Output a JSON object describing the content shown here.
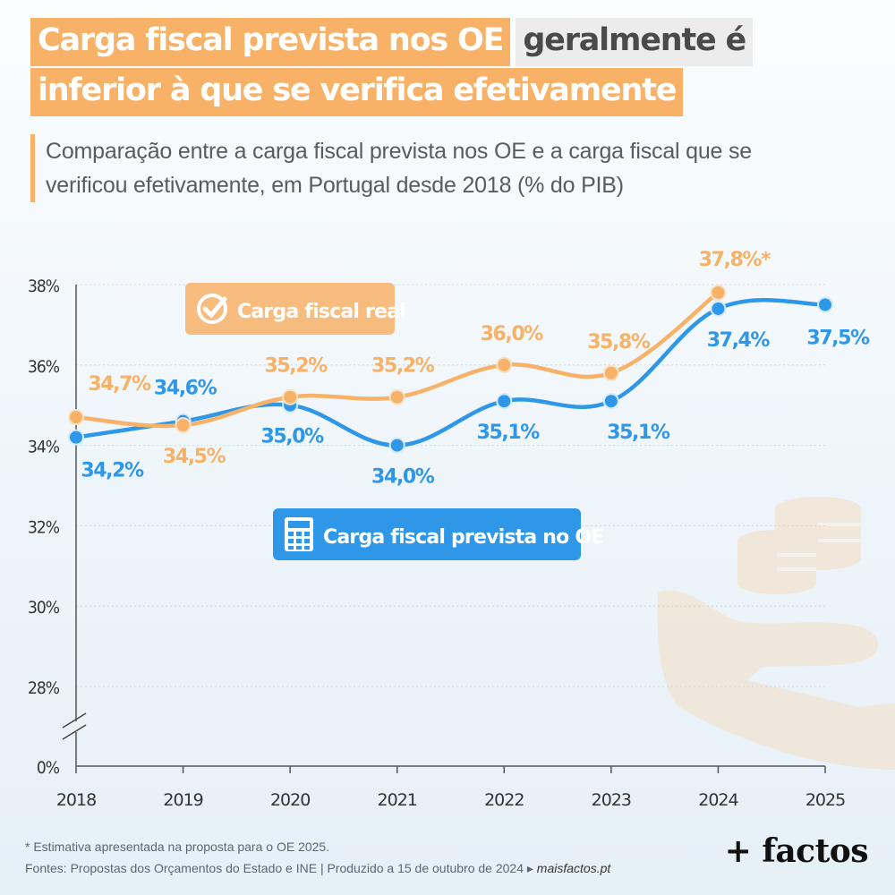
{
  "header": {
    "title_part1": "Carga fiscal prevista nos OE",
    "title_part2": "geralmente é",
    "title_part3": "inferior à que se verifica efetivamente",
    "subtitle": "Comparação entre a carga fiscal prevista nos OE e a carga fiscal que se verificou efetivamente, em Portugal desde 2018 (% do PIB)"
  },
  "chart_data": {
    "type": "line",
    "x": [
      "2018",
      "2019",
      "2020",
      "2021",
      "2022",
      "2023",
      "2024",
      "2025"
    ],
    "y_ticks": [
      "38%",
      "36%",
      "34%",
      "32%",
      "30%",
      "28%",
      "0%"
    ],
    "axis_break": true,
    "ylim": [
      28,
      38
    ],
    "grid": true,
    "series": [
      {
        "name": "Carga fiscal real",
        "color": "#f7b267",
        "icon": "check-circle-icon",
        "values": [
          34.7,
          34.5,
          35.2,
          35.2,
          36.0,
          35.8,
          37.8,
          null
        ],
        "labels": [
          "34,7%",
          "34,5%",
          "35,2%",
          "35,2%",
          "36,0%",
          "35,8%",
          "37,8%*",
          ""
        ]
      },
      {
        "name": "Carga fiscal prevista no OE",
        "color": "#2f97e8",
        "icon": "calculator-icon",
        "values": [
          34.2,
          34.6,
          35.0,
          34.0,
          35.1,
          35.1,
          37.4,
          37.5
        ],
        "labels": [
          "34,2%",
          "34,6%",
          "35,0%",
          "34,0%",
          "35,1%",
          "35,1%",
          "37,4%",
          "37,5%"
        ]
      }
    ]
  },
  "footer": {
    "note": "* Estimativa apresentada na proposta para o OE 2025.",
    "sources": "Fontes: Propostas dos Orçamentos do Estado e INE | Produzido a 15 de outubro de 2024 ▸",
    "site": "maisfactos.pt",
    "brand": "+ factos"
  },
  "decor": {
    "coins_icon": "coins-icon",
    "hand_icon": "hand-icon"
  }
}
